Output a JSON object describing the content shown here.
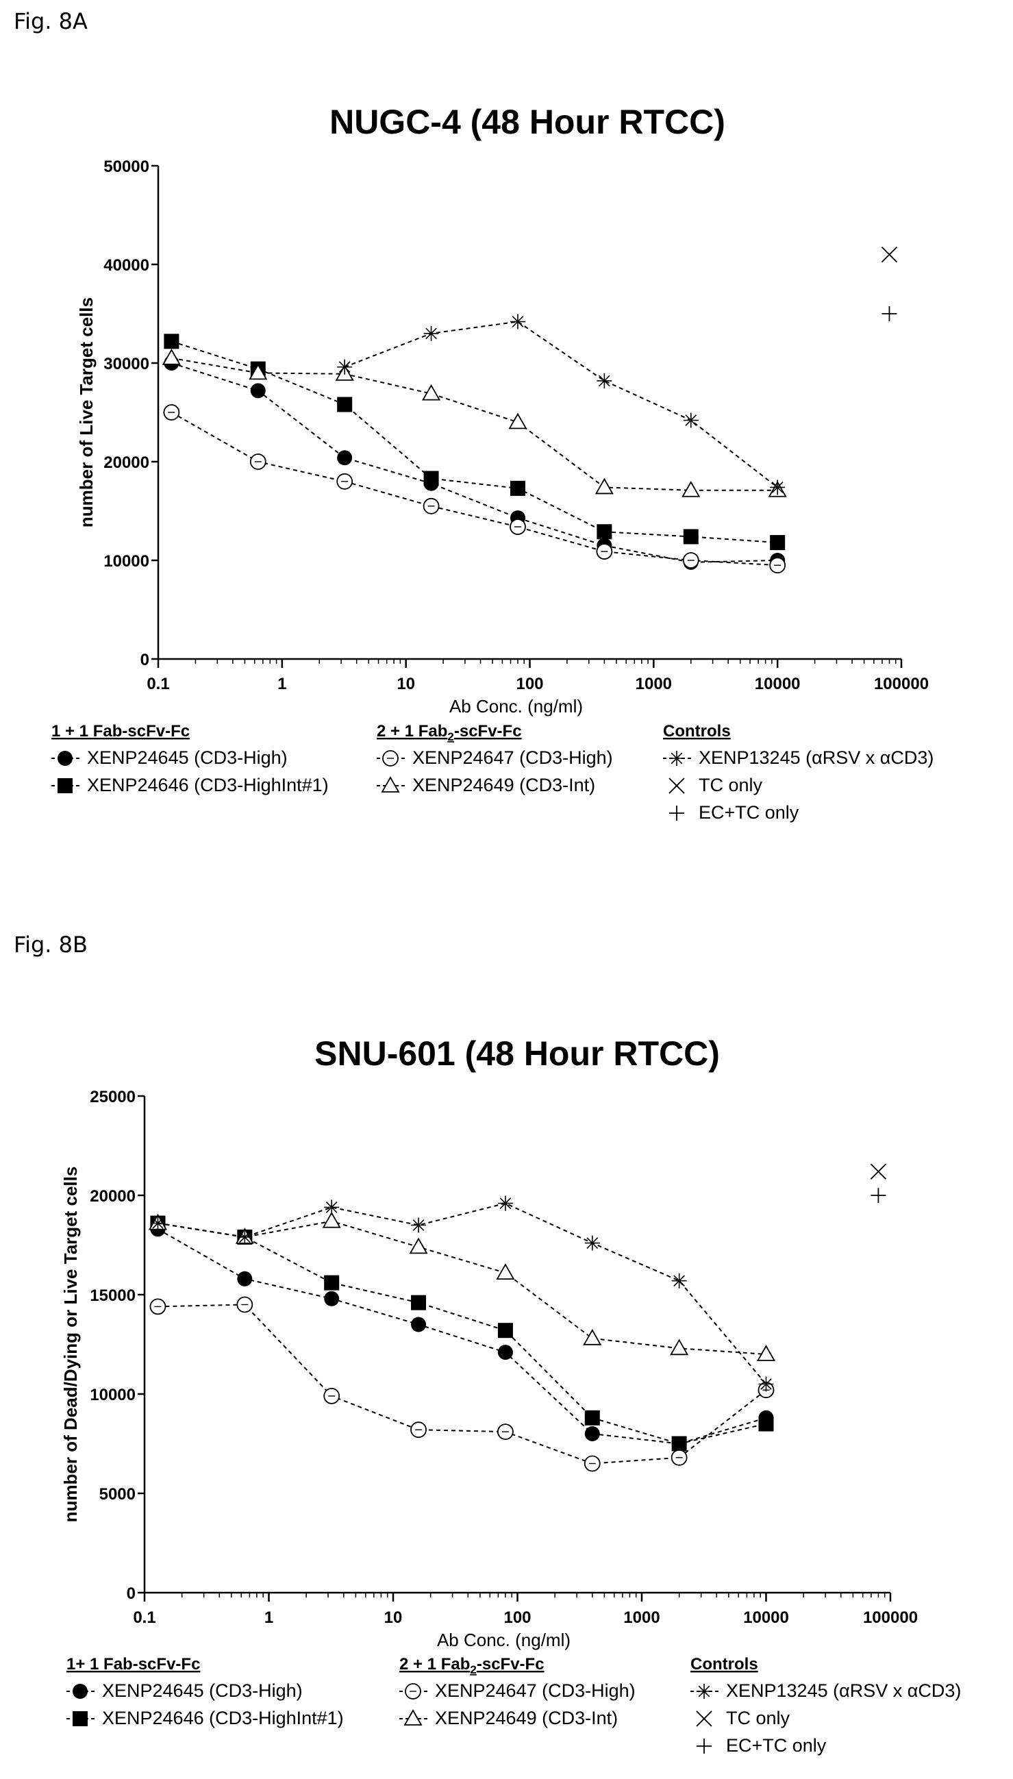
{
  "figures": [
    {
      "label": "Fig. 8A",
      "chart_data": {
        "type": "scatter",
        "title": "NUGC-4 (48 Hour RTCC)",
        "xlabel": "Ab Conc. (ng/ml)",
        "ylabel": "number of Live Target cells",
        "xscale": "log",
        "xlim": [
          0.1,
          100000
        ],
        "ylim": [
          0,
          50000
        ],
        "x_ticks": [
          "0.1",
          "1",
          "10",
          "100",
          "1000",
          "10000",
          "100000"
        ],
        "y_ticks": [
          "0",
          "10000",
          "20000",
          "30000",
          "40000",
          "50000"
        ],
        "grid": false,
        "legend_groups": [
          {
            "title": "1 + 1 Fab-scFv-Fc",
            "title_html": "1 + 1 Fab-scFv-Fc"
          },
          {
            "title": "2 + 1 Fab2-scFv-Fc"
          },
          {
            "title": "Controls"
          }
        ],
        "series": [
          {
            "name": "XENP24645 (CD3-High)",
            "marker": "filled-circle",
            "group": 0,
            "x": [
              0.128,
              0.64,
              3.2,
              16,
              80,
              400,
              2000,
              10000
            ],
            "y": [
              30000,
              27200,
              20400,
              17800,
              14300,
              11500,
              9800,
              10000
            ]
          },
          {
            "name": "XENP24646 (CD3-HighInt#1)",
            "marker": "filled-square",
            "group": 0,
            "x": [
              0.128,
              0.64,
              3.2,
              16,
              80,
              400,
              2000,
              10000
            ],
            "y": [
              32200,
              29400,
              25800,
              18300,
              17300,
              12900,
              12400,
              11800
            ]
          },
          {
            "name": "XENP24647 (CD3-High)",
            "marker": "open-circle",
            "group": 1,
            "x": [
              0.128,
              0.64,
              3.2,
              16,
              80,
              400,
              2000,
              10000
            ],
            "y": [
              25000,
              20000,
              18000,
              15500,
              13400,
              10900,
              10000,
              9500
            ]
          },
          {
            "name": "XENP24649 (CD3-Int)",
            "marker": "open-triangle",
            "group": 1,
            "x": [
              0.128,
              0.64,
              3.2,
              16,
              80,
              400,
              2000,
              10000
            ],
            "y": [
              30500,
              29000,
              28900,
              26900,
              24000,
              17400,
              17100,
              17100
            ]
          },
          {
            "name": "XENP13245 (αRSV x αCD3)",
            "marker": "asterisk",
            "group": 2,
            "x": [
              3.2,
              16,
              80,
              400,
              2000,
              10000
            ],
            "y": [
              29600,
              33000,
              34200,
              28200,
              24200,
              17400
            ]
          },
          {
            "name": "TC only",
            "marker": "x",
            "group": 2,
            "x": [
              80000
            ],
            "y": [
              41000
            ]
          },
          {
            "name": "EC+TC only",
            "marker": "plus",
            "group": 2,
            "x": [
              80000
            ],
            "y": [
              35000
            ]
          }
        ]
      }
    },
    {
      "label": "Fig. 8B",
      "chart_data": {
        "type": "scatter",
        "title": "SNU-601 (48 Hour RTCC)",
        "xlabel": "Ab Conc. (ng/ml)",
        "ylabel": "number of Dead/Dying or Live Target cells",
        "xscale": "log",
        "xlim": [
          0.1,
          100000
        ],
        "ylim": [
          0,
          25000
        ],
        "x_ticks": [
          "0.1",
          "1",
          "10",
          "100",
          "1000",
          "10000",
          "100000"
        ],
        "y_ticks": [
          "0",
          "5000",
          "10000",
          "15000",
          "20000",
          "25000"
        ],
        "grid": false,
        "legend_groups": [
          {
            "title": "1+ 1 Fab-scFv-Fc"
          },
          {
            "title": "2 + 1 Fab2-scFv-Fc"
          },
          {
            "title": "Controls"
          }
        ],
        "series": [
          {
            "name": "XENP24645 (CD3-High)",
            "marker": "filled-circle",
            "group": 0,
            "x": [
              0.128,
              0.64,
              3.2,
              16,
              80,
              400,
              2000,
              10000
            ],
            "y": [
              18300,
              15800,
              14800,
              13500,
              12100,
              8000,
              7500,
              8800
            ]
          },
          {
            "name": "XENP24646 (CD3-HighInt#1)",
            "marker": "filled-square",
            "group": 0,
            "x": [
              0.128,
              0.64,
              3.2,
              16,
              80,
              400,
              2000,
              10000
            ],
            "y": [
              18600,
              17900,
              15600,
              14600,
              13200,
              8800,
              7500,
              8500
            ]
          },
          {
            "name": "XENP24647 (CD3-High)",
            "marker": "open-circle",
            "group": 1,
            "x": [
              0.128,
              0.64,
              3.2,
              16,
              80,
              400,
              2000,
              10000
            ],
            "y": [
              14400,
              14500,
              9900,
              8200,
              8100,
              6500,
              6800,
              10200
            ]
          },
          {
            "name": "XENP24649 (CD3-Int)",
            "marker": "open-triangle",
            "group": 1,
            "x": [
              0.128,
              0.64,
              3.2,
              16,
              80,
              400,
              2000,
              10000
            ],
            "y": [
              18600,
              17900,
              18700,
              17400,
              16100,
              12800,
              12300,
              12000
            ]
          },
          {
            "name": "XENP13245 (αRSV x αCD3)",
            "marker": "asterisk",
            "group": 2,
            "x": [
              0.128,
              0.64,
              3.2,
              16,
              80,
              400,
              2000,
              10000
            ],
            "y": [
              18600,
              17900,
              19400,
              18500,
              19600,
              17600,
              15700,
              10500
            ]
          },
          {
            "name": "TC only",
            "marker": "x",
            "group": 2,
            "x": [
              80000
            ],
            "y": [
              21200
            ]
          },
          {
            "name": "EC+TC only",
            "marker": "plus",
            "group": 2,
            "x": [
              80000
            ],
            "y": [
              20000
            ]
          }
        ]
      }
    }
  ]
}
